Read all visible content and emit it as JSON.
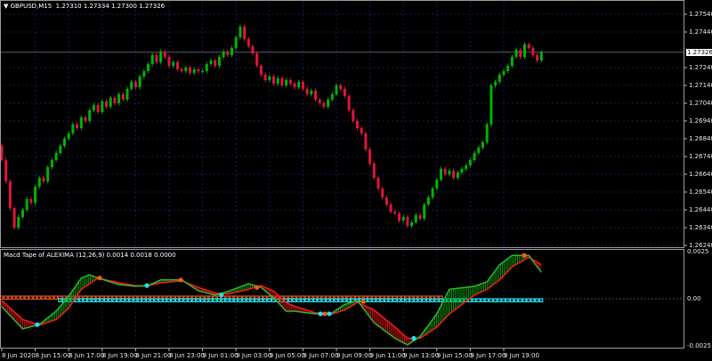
{
  "header": {
    "arrow": "▼",
    "symbol": "GBPUSD,M15",
    "ohlc": "1.27310 1.27334 1.27300 1.27326"
  },
  "indicator": {
    "title": "Macd Tape of ALEXIMA (12,26,9) 0.0014 0.0018 0.0000"
  },
  "colors": {
    "bull": "#00b400",
    "bear": "#e0143c",
    "grid": "#1a1a5a",
    "macd": "#2fb82f",
    "signal": "#ff1a1a",
    "dot_up": "#19e5ef",
    "dot_down": "#ff5a14",
    "tape_red": "#e0501e",
    "tape_cyan": "#19e5ef"
  },
  "chart_data": [
    {
      "type": "candlestick",
      "symbol": "GBPUSD",
      "timeframe": "M15",
      "price_ticks": [
        "1.27540",
        "1.27440",
        "1.27240",
        "1.27140",
        "1.27040",
        "1.26940",
        "1.26840",
        "1.26740",
        "1.26640",
        "1.26540",
        "1.26440",
        "1.26340",
        "1.26240"
      ],
      "current_price": "1.27326",
      "first_open": 1.268,
      "closes": [
        1.2672,
        1.266,
        1.2645,
        1.2634,
        1.264,
        1.2644,
        1.265,
        1.2648,
        1.2657,
        1.2662,
        1.266,
        1.2668,
        1.2672,
        1.2676,
        1.268,
        1.2684,
        1.2687,
        1.2692,
        1.269,
        1.2696,
        1.2694,
        1.27,
        1.2703,
        1.2699,
        1.2705,
        1.2702,
        1.2707,
        1.2704,
        1.2709,
        1.2706,
        1.2712,
        1.2716,
        1.2713,
        1.2719,
        1.2722,
        1.2726,
        1.2731,
        1.2727,
        1.2733,
        1.273,
        1.2725,
        1.2727,
        1.2723,
        1.2722,
        1.2724,
        1.2721,
        1.2723,
        1.2722,
        1.2722,
        1.2726,
        1.2728,
        1.2725,
        1.273,
        1.2733,
        1.2731,
        1.2735,
        1.2741,
        1.2747,
        1.274,
        1.2736,
        1.2732,
        1.2725,
        1.272,
        1.2717,
        1.2719,
        1.2715,
        1.2718,
        1.2714,
        1.2717,
        1.2715,
        1.2713,
        1.2716,
        1.2712,
        1.2709,
        1.2711,
        1.2706,
        1.2704,
        1.2702,
        1.2706,
        1.2709,
        1.2714,
        1.2712,
        1.2708,
        1.27,
        1.2694,
        1.269,
        1.2687,
        1.2678,
        1.267,
        1.2662,
        1.2656,
        1.2651,
        1.2647,
        1.2643,
        1.2642,
        1.2638,
        1.264,
        1.2635,
        1.2637,
        1.2641,
        1.2639,
        1.2647,
        1.2651,
        1.2656,
        1.2661,
        1.2667,
        1.2664,
        1.2666,
        1.2662,
        1.2665,
        1.2667,
        1.2669,
        1.2672,
        1.2676,
        1.2679,
        1.2682,
        1.2692,
        1.2714,
        1.2716,
        1.272,
        1.2722,
        1.2725,
        1.273,
        1.2734,
        1.273,
        1.2737,
        1.2735,
        1.2731,
        1.2728,
        1.27326
      ]
    },
    {
      "type": "line",
      "name": "Macd Tape of ALEXIMA (12,26,9)",
      "y_ticks": [
        "0.0025",
        "0.00",
        "-0.0025"
      ],
      "ylim": [
        -0.0025,
        0.0025
      ],
      "bar_index": [
        0,
        5,
        9,
        13,
        16,
        19,
        21,
        23,
        28,
        32,
        35,
        38,
        43,
        47,
        51,
        54,
        59,
        62,
        65,
        68,
        70,
        75,
        79,
        82,
        85,
        89,
        94,
        97,
        100,
        104,
        107,
        113,
        116,
        119,
        122,
        126,
        129
      ],
      "macd": [
        -0.00042,
        -0.0016,
        -0.00137,
        -0.00066,
        0.00014,
        0.0011,
        0.00127,
        0.0011,
        0.00075,
        0.00066,
        0.0007,
        0.001,
        0.001,
        0.00042,
        0.0002,
        0.00038,
        0.0008,
        0.0006,
        5e-05,
        -0.00066,
        -0.00066,
        -0.0008,
        -0.00075,
        -0.0003,
        -0.0001,
        -0.00127,
        -0.0021,
        -0.00245,
        -0.002,
        -0.0008,
        0.0005,
        0.00066,
        0.0009,
        0.0018,
        0.0023,
        0.0023,
        0.0014
      ],
      "signal": [
        -0.0001,
        -0.0011,
        -0.0014,
        -0.0011,
        -0.0005,
        0.0005,
        0.0008,
        0.0011,
        0.00085,
        0.0007,
        0.0007,
        0.00085,
        0.00095,
        0.0006,
        0.0003,
        0.00025,
        0.0005,
        0.0007,
        0.0004,
        -0.0002,
        -0.0004,
        -0.00075,
        -0.0008,
        -0.0006,
        -0.0002,
        -0.0006,
        -0.0015,
        -0.0021,
        -0.0021,
        -0.0015,
        -0.0008,
        0.0002,
        0.0005,
        0.001,
        0.0017,
        0.0022,
        0.0018
      ],
      "cross_up": [
        [
          8.5,
          -0.00137
        ],
        [
          34.7,
          0.0007
        ],
        [
          52.5,
          0.0002
        ],
        [
          76.2,
          -0.0008
        ],
        [
          78.3,
          -0.0008
        ],
        [
          98.5,
          -0.0021
        ]
      ],
      "cross_down": [
        [
          23.4,
          0.0011
        ],
        [
          42.8,
          0.001
        ],
        [
          61,
          0.0006
        ],
        [
          77.2,
          -0.0008
        ],
        [
          86.4,
          -0.00015
        ],
        [
          124.9,
          0.0023
        ]
      ],
      "tape_bearish_bars": [
        0,
        105
      ],
      "tape_bullish_bars": [
        14,
        129
      ]
    }
  ],
  "time_axis": [
    "8 Jun 2020",
    "8 Jun 15:00",
    "8 Jun 17:00",
    "8 Jun 19:00",
    "8 Jun 21:00",
    "8 Jun 23:00",
    "9 Jun 01:00",
    "9 Jun 03:00",
    "9 Jun 05:00",
    "9 Jun 07:00",
    "9 Jun 09:00",
    "9 Jun 11:00",
    "9 Jun 13:00",
    "9 Jun 15:00",
    "9 Jun 17:00",
    "9 Jun 19:00"
  ]
}
